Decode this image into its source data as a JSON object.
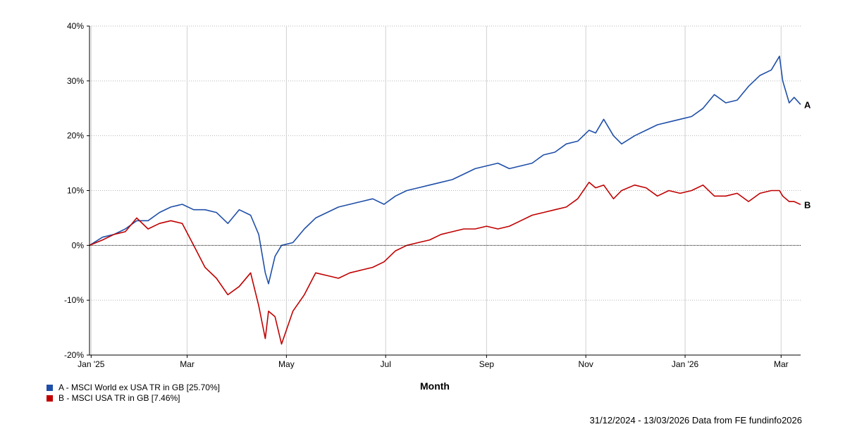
{
  "chart_data": {
    "type": "line",
    "xlabel": "Month",
    "ylabel": "",
    "ylim": [
      -20,
      40
    ],
    "yticks": [
      -20,
      -10,
      0,
      10,
      20,
      30,
      40
    ],
    "ytick_labels": [
      "-20%",
      "-10%",
      "0%",
      "10%",
      "20%",
      "30%",
      "40%"
    ],
    "xlim": [
      "2024-12-31",
      "2026-03-13"
    ],
    "xticks": [
      {
        "label": "Jan '25",
        "date": "2025-01-01"
      },
      {
        "label": "Mar",
        "date": "2025-03-01"
      },
      {
        "label": "May",
        "date": "2025-05-01"
      },
      {
        "label": "Jul",
        "date": "2025-07-01"
      },
      {
        "label": "Sep",
        "date": "2025-09-01"
      },
      {
        "label": "Nov",
        "date": "2025-11-01"
      },
      {
        "label": "Jan '26",
        "date": "2026-01-01"
      },
      {
        "label": "Mar",
        "date": "2026-03-01"
      }
    ],
    "grid": true,
    "series": [
      {
        "name": "A - MSCI World ex USA TR in GB [25.70%]",
        "end_marker": "A",
        "color": "#1f4fa8",
        "points": [
          [
            "2024-12-31",
            0
          ],
          [
            "2025-01-08",
            1.5
          ],
          [
            "2025-01-15",
            2
          ],
          [
            "2025-01-22",
            3
          ],
          [
            "2025-01-29",
            4.5
          ],
          [
            "2025-02-05",
            4.5
          ],
          [
            "2025-02-12",
            6
          ],
          [
            "2025-02-19",
            7
          ],
          [
            "2025-02-26",
            7.5
          ],
          [
            "2025-03-05",
            6.5
          ],
          [
            "2025-03-12",
            6.5
          ],
          [
            "2025-03-19",
            6
          ],
          [
            "2025-03-26",
            4
          ],
          [
            "2025-04-02",
            6.5
          ],
          [
            "2025-04-09",
            5.5
          ],
          [
            "2025-04-14",
            2
          ],
          [
            "2025-04-18",
            -5
          ],
          [
            "2025-04-20",
            -7
          ],
          [
            "2025-04-24",
            -2
          ],
          [
            "2025-04-28",
            0
          ],
          [
            "2025-05-05",
            0.5
          ],
          [
            "2025-05-12",
            3
          ],
          [
            "2025-05-19",
            5
          ],
          [
            "2025-05-26",
            6
          ],
          [
            "2025-06-02",
            7
          ],
          [
            "2025-06-09",
            7.5
          ],
          [
            "2025-06-16",
            8
          ],
          [
            "2025-06-23",
            8.5
          ],
          [
            "2025-06-30",
            7.5
          ],
          [
            "2025-07-07",
            9
          ],
          [
            "2025-07-14",
            10
          ],
          [
            "2025-07-21",
            10.5
          ],
          [
            "2025-07-28",
            11
          ],
          [
            "2025-08-04",
            11.5
          ],
          [
            "2025-08-11",
            12
          ],
          [
            "2025-08-18",
            13
          ],
          [
            "2025-08-25",
            14
          ],
          [
            "2025-09-01",
            14.5
          ],
          [
            "2025-09-08",
            15
          ],
          [
            "2025-09-15",
            14
          ],
          [
            "2025-09-22",
            14.5
          ],
          [
            "2025-09-29",
            15
          ],
          [
            "2025-10-06",
            16.5
          ],
          [
            "2025-10-13",
            17
          ],
          [
            "2025-10-20",
            18.5
          ],
          [
            "2025-10-27",
            19
          ],
          [
            "2025-11-03",
            21
          ],
          [
            "2025-11-07",
            20.5
          ],
          [
            "2025-11-12",
            23
          ],
          [
            "2025-11-18",
            20
          ],
          [
            "2025-11-23",
            18.5
          ],
          [
            "2025-12-01",
            20
          ],
          [
            "2025-12-08",
            21
          ],
          [
            "2025-12-15",
            22
          ],
          [
            "2025-12-22",
            22.5
          ],
          [
            "2025-12-29",
            23
          ],
          [
            "2026-01-05",
            23.5
          ],
          [
            "2026-01-12",
            25
          ],
          [
            "2026-01-19",
            27.5
          ],
          [
            "2026-01-26",
            26
          ],
          [
            "2026-02-02",
            26.5
          ],
          [
            "2026-02-09",
            29
          ],
          [
            "2026-02-16",
            31
          ],
          [
            "2026-02-23",
            32
          ],
          [
            "2026-02-28",
            34.5
          ],
          [
            "2026-03-02",
            30
          ],
          [
            "2026-03-06",
            26
          ],
          [
            "2026-03-09",
            27
          ],
          [
            "2026-03-13",
            25.7
          ]
        ]
      },
      {
        "name": "B - MSCI USA TR in GB [7.46%]",
        "end_marker": "B",
        "color": "#c00000",
        "points": [
          [
            "2024-12-31",
            0
          ],
          [
            "2025-01-08",
            1
          ],
          [
            "2025-01-15",
            2
          ],
          [
            "2025-01-22",
            2.5
          ],
          [
            "2025-01-29",
            5
          ],
          [
            "2025-02-05",
            3
          ],
          [
            "2025-02-12",
            4
          ],
          [
            "2025-02-19",
            4.5
          ],
          [
            "2025-02-26",
            4
          ],
          [
            "2025-03-05",
            0
          ],
          [
            "2025-03-12",
            -4
          ],
          [
            "2025-03-19",
            -6
          ],
          [
            "2025-03-26",
            -9
          ],
          [
            "2025-04-02",
            -7.5
          ],
          [
            "2025-04-09",
            -5
          ],
          [
            "2025-04-14",
            -11
          ],
          [
            "2025-04-18",
            -17
          ],
          [
            "2025-04-20",
            -12
          ],
          [
            "2025-04-24",
            -13
          ],
          [
            "2025-04-28",
            -18
          ],
          [
            "2025-05-05",
            -12
          ],
          [
            "2025-05-12",
            -9
          ],
          [
            "2025-05-19",
            -5
          ],
          [
            "2025-05-26",
            -5.5
          ],
          [
            "2025-06-02",
            -6
          ],
          [
            "2025-06-09",
            -5
          ],
          [
            "2025-06-16",
            -4.5
          ],
          [
            "2025-06-23",
            -4
          ],
          [
            "2025-06-30",
            -3
          ],
          [
            "2025-07-07",
            -1
          ],
          [
            "2025-07-14",
            0
          ],
          [
            "2025-07-21",
            0.5
          ],
          [
            "2025-07-28",
            1
          ],
          [
            "2025-08-04",
            2
          ],
          [
            "2025-08-11",
            2.5
          ],
          [
            "2025-08-18",
            3
          ],
          [
            "2025-08-25",
            3
          ],
          [
            "2025-09-01",
            3.5
          ],
          [
            "2025-09-08",
            3
          ],
          [
            "2025-09-15",
            3.5
          ],
          [
            "2025-09-22",
            4.5
          ],
          [
            "2025-09-29",
            5.5
          ],
          [
            "2025-10-06",
            6
          ],
          [
            "2025-10-13",
            6.5
          ],
          [
            "2025-10-20",
            7
          ],
          [
            "2025-10-27",
            8.5
          ],
          [
            "2025-11-03",
            11.5
          ],
          [
            "2025-11-07",
            10.5
          ],
          [
            "2025-11-12",
            11
          ],
          [
            "2025-11-18",
            8.5
          ],
          [
            "2025-11-23",
            10
          ],
          [
            "2025-12-01",
            11
          ],
          [
            "2025-12-08",
            10.5
          ],
          [
            "2025-12-15",
            9
          ],
          [
            "2025-12-22",
            10
          ],
          [
            "2025-12-29",
            9.5
          ],
          [
            "2026-01-05",
            10
          ],
          [
            "2026-01-12",
            11
          ],
          [
            "2026-01-19",
            9
          ],
          [
            "2026-01-26",
            9
          ],
          [
            "2026-02-02",
            9.5
          ],
          [
            "2026-02-09",
            8
          ],
          [
            "2026-02-16",
            9.5
          ],
          [
            "2026-02-23",
            10
          ],
          [
            "2026-02-28",
            10
          ],
          [
            "2026-03-02",
            9
          ],
          [
            "2026-03-06",
            8
          ],
          [
            "2026-03-09",
            8
          ],
          [
            "2026-03-13",
            7.46
          ]
        ]
      }
    ],
    "footer": "31/12/2024 - 13/03/2026 Data from FE fundinfo2026"
  }
}
